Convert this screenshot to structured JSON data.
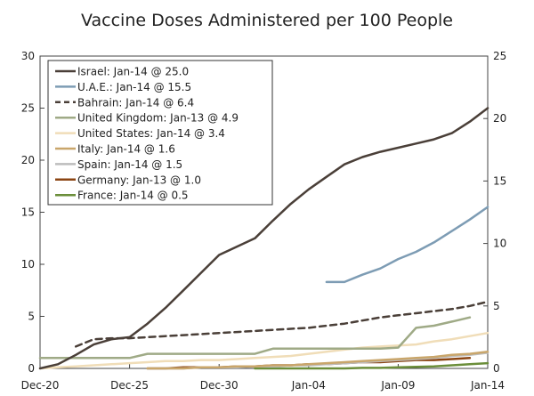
{
  "chart_data": {
    "type": "line",
    "title": "Vaccine Doses Administered per 100 People",
    "xlabel": "",
    "ylabel": "",
    "x_ticks": [
      "Dec-20",
      "Dec-25",
      "Dec-30",
      "Jan-04",
      "Jan-09",
      "Jan-14"
    ],
    "x_range_days": [
      0,
      25
    ],
    "ylim_left": [
      0,
      30
    ],
    "y_ticks_left": [
      0,
      5,
      10,
      15,
      20,
      25,
      30
    ],
    "ylim_right": [
      0,
      25
    ],
    "y_ticks_right": [
      0,
      5,
      10,
      15,
      20,
      25
    ],
    "legend_position": "top-left",
    "series": [
      {
        "name": "Israel",
        "legend": "Israel: Jan-14 @ 25.0",
        "color": "#4a3f38",
        "dash": "",
        "width": 2.5,
        "x": [
          0,
          1,
          2,
          3,
          4,
          5,
          6,
          7,
          8,
          9,
          10,
          11,
          12,
          13,
          14,
          15,
          16,
          17,
          18,
          19,
          20,
          21,
          22,
          23,
          24,
          25
        ],
        "y": [
          0.0,
          0.4,
          1.3,
          2.3,
          2.8,
          3.0,
          4.3,
          5.8,
          7.5,
          9.2,
          10.9,
          11.7,
          12.5,
          14.2,
          15.8,
          17.2,
          18.4,
          19.6,
          20.3,
          20.8,
          21.2,
          21.6,
          22.0,
          22.6,
          23.7,
          25.0
        ]
      },
      {
        "name": "U.A.E.",
        "legend": "U.A.E.: Jan-14 @ 15.5",
        "color": "#7d9cb4",
        "dash": "",
        "width": 2.5,
        "x": [
          16,
          17,
          18,
          19,
          20,
          21,
          22,
          23,
          24,
          25
        ],
        "y": [
          8.3,
          8.3,
          9.0,
          9.6,
          10.5,
          11.2,
          12.1,
          13.2,
          14.3,
          15.5
        ]
      },
      {
        "name": "Bahrain",
        "legend": "Bahrain: Jan-14 @ 6.4",
        "color": "#4a3f38",
        "dash": "7,5",
        "width": 2.5,
        "x": [
          2,
          3,
          4,
          5,
          6,
          7,
          8,
          9,
          10,
          11,
          12,
          13,
          14,
          15,
          16,
          17,
          18,
          19,
          20,
          21,
          22,
          23,
          24,
          25
        ],
        "y": [
          2.1,
          2.8,
          2.9,
          2.9,
          3.0,
          3.1,
          3.2,
          3.3,
          3.4,
          3.5,
          3.6,
          3.7,
          3.8,
          3.9,
          4.1,
          4.3,
          4.6,
          4.9,
          5.1,
          5.3,
          5.5,
          5.7,
          6.0,
          6.4
        ]
      },
      {
        "name": "United Kingdom",
        "legend": "United Kingdom: Jan-13 @ 4.9",
        "color": "#9faa86",
        "dash": "",
        "width": 2.5,
        "x": [
          0,
          1,
          2,
          3,
          4,
          5,
          6,
          7,
          8,
          9,
          10,
          11,
          12,
          13,
          14,
          15,
          16,
          17,
          18,
          19,
          20,
          21,
          22,
          23,
          24
        ],
        "y": [
          1.0,
          1.0,
          1.0,
          1.0,
          1.0,
          1.0,
          1.4,
          1.4,
          1.4,
          1.4,
          1.4,
          1.4,
          1.4,
          1.9,
          1.9,
          1.9,
          1.9,
          1.9,
          1.9,
          1.9,
          2.0,
          3.9,
          4.1,
          4.5,
          4.9
        ]
      },
      {
        "name": "United States",
        "legend": "United States: Jan-14 @ 3.4",
        "color": "#f0ddb8",
        "dash": "",
        "width": 2.5,
        "x": [
          0,
          1,
          2,
          3,
          4,
          5,
          6,
          7,
          8,
          9,
          10,
          11,
          12,
          13,
          14,
          15,
          16,
          17,
          18,
          19,
          20,
          21,
          22,
          23,
          24,
          25
        ],
        "y": [
          0.0,
          0.1,
          0.2,
          0.3,
          0.4,
          0.5,
          0.6,
          0.7,
          0.7,
          0.8,
          0.8,
          0.9,
          1.0,
          1.1,
          1.2,
          1.4,
          1.6,
          1.8,
          2.0,
          2.1,
          2.2,
          2.3,
          2.6,
          2.8,
          3.1,
          3.4
        ]
      },
      {
        "name": "Italy",
        "legend": "Italy: Jan-14 @ 1.6",
        "color": "#c9a66b",
        "dash": "",
        "width": 2.5,
        "x": [
          6,
          7,
          8,
          9,
          10,
          11,
          12,
          13,
          14,
          15,
          16,
          17,
          18,
          19,
          20,
          21,
          22,
          23,
          24,
          25
        ],
        "y": [
          0.0,
          0.0,
          0.0,
          0.1,
          0.1,
          0.2,
          0.2,
          0.3,
          0.3,
          0.4,
          0.5,
          0.6,
          0.7,
          0.8,
          0.9,
          1.0,
          1.1,
          1.3,
          1.4,
          1.6
        ]
      },
      {
        "name": "Spain",
        "legend": "Spain: Jan-14 @ 1.5",
        "color": "#bdbdbd",
        "dash": "",
        "width": 2.5,
        "x": [
          6,
          7,
          8,
          9,
          10,
          11,
          12,
          13,
          14,
          15,
          16,
          17,
          18,
          19,
          20,
          21,
          22,
          23,
          24,
          25
        ],
        "y": [
          0.0,
          0.0,
          0.0,
          0.1,
          0.1,
          0.1,
          0.2,
          0.2,
          0.3,
          0.3,
          0.4,
          0.5,
          0.6,
          0.7,
          0.8,
          0.9,
          1.0,
          1.2,
          1.3,
          1.5
        ]
      },
      {
        "name": "Germany",
        "legend": "Germany: Jan-13 @ 1.0",
        "color": "#8b4513",
        "dash": "",
        "width": 2.5,
        "x": [
          6,
          7,
          8,
          9,
          10,
          11,
          12,
          13,
          14,
          15,
          16,
          17,
          18,
          19,
          20,
          21,
          22,
          23,
          24
        ],
        "y": [
          0.0,
          0.0,
          0.1,
          0.1,
          0.1,
          0.2,
          0.2,
          0.3,
          0.3,
          0.4,
          0.4,
          0.5,
          0.6,
          0.6,
          0.7,
          0.8,
          0.8,
          0.9,
          1.0
        ]
      },
      {
        "name": "France",
        "legend": "France: Jan-14 @ 0.5",
        "color": "#6b8e3a",
        "dash": "",
        "width": 2.5,
        "x": [
          12,
          13,
          14,
          15,
          16,
          17,
          18,
          19,
          20,
          21,
          22,
          23,
          24,
          25
        ],
        "y": [
          0.0,
          0.0,
          0.0,
          0.0,
          0.0,
          0.0,
          0.05,
          0.05,
          0.1,
          0.15,
          0.2,
          0.3,
          0.4,
          0.5
        ]
      }
    ]
  }
}
